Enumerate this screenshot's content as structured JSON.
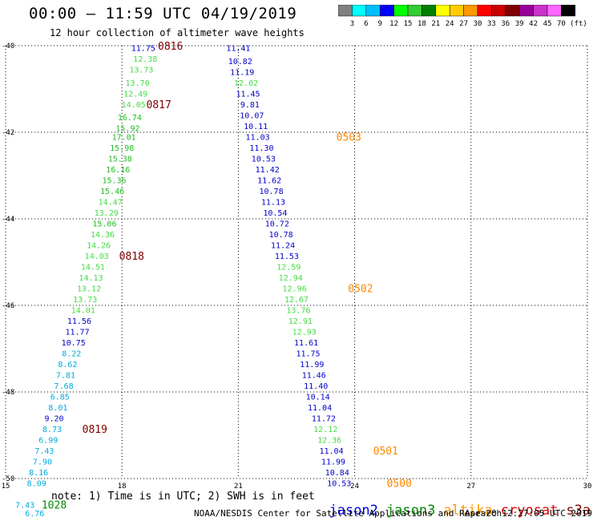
{
  "header": {
    "title": "00:00 – 11:59 UTC 04/19/2019",
    "subtitle": "12 hour collection of altimeter wave heights"
  },
  "colorbar": {
    "labels": [
      "3",
      "6",
      "9",
      "12",
      "15",
      "18",
      "21",
      "24",
      "27",
      "30",
      "33",
      "36",
      "39",
      "42",
      "45",
      "70"
    ],
    "unit": "(ft)",
    "colors": [
      "#808080",
      "#00ffff",
      "#00bfff",
      "#0000ff",
      "#00ff00",
      "#33cc33",
      "#008000",
      "#ffff00",
      "#ffcc00",
      "#ff9900",
      "#ff0000",
      "#cc0000",
      "#800000",
      "#990099",
      "#cc33cc",
      "#ff66ff",
      "#000000"
    ]
  },
  "footer": {
    "note": "note: 1) Time is in UTC; 2) SWH is in feet",
    "credit": "NOAA/NESDIS Center for Satellite Applications and Research",
    "timestamp": "Apr 20 12:27:05 UTC 2019",
    "satellites": [
      {
        "name": "jason2",
        "color": "#0000ee"
      },
      {
        "name": "jason3",
        "color": "#008800"
      },
      {
        "name": "altika",
        "color": "#ff9900"
      },
      {
        "name": "cryosat",
        "color": "#dd0000"
      },
      {
        "name": "s3a",
        "color": "#800000"
      }
    ]
  },
  "chart_data": {
    "type": "scatter",
    "title": "12 hour collection of altimeter wave heights",
    "xlabel": "",
    "ylabel": "",
    "xlim": [
      15,
      30
    ],
    "ylim": [
      -50,
      -40
    ],
    "xticks": [
      15,
      18,
      21,
      24,
      27,
      30
    ],
    "yticks": [
      -40,
      -42,
      -44,
      -46,
      -48,
      -50
    ],
    "grid": true,
    "series": [
      {
        "satellite": "jason2",
        "points": [
          [
            21.0,
            -40.05,
            "11.41"
          ],
          [
            21.05,
            -40.35,
            "10.82"
          ],
          [
            21.1,
            -40.6,
            "11.19"
          ],
          [
            21.2,
            -40.85,
            "12.02"
          ],
          [
            21.25,
            -41.1,
            "11.45"
          ],
          [
            21.3,
            -41.35,
            "9.81"
          ],
          [
            21.35,
            -41.6,
            "10.07"
          ],
          [
            21.45,
            -41.85,
            "10.11"
          ],
          [
            21.5,
            -42.1,
            "11.03"
          ],
          [
            21.6,
            -42.35,
            "11.30"
          ],
          [
            21.65,
            -42.6,
            "10.53"
          ],
          [
            21.75,
            -42.85,
            "11.42"
          ],
          [
            21.8,
            -43.1,
            "11.62"
          ],
          [
            21.85,
            -43.35,
            "10.78"
          ],
          [
            21.9,
            -43.6,
            "11.13"
          ],
          [
            21.95,
            -43.85,
            "10.54"
          ],
          [
            22.0,
            -44.1,
            "10.72"
          ],
          [
            22.1,
            -44.35,
            "10.78"
          ],
          [
            22.15,
            -44.6,
            "11.24"
          ],
          [
            22.25,
            -44.85,
            "11.53"
          ],
          [
            22.3,
            -45.1,
            "12.59"
          ],
          [
            22.35,
            -45.35,
            "12.94"
          ],
          [
            22.45,
            -45.6,
            "12.96"
          ],
          [
            22.5,
            -45.85,
            "12.67"
          ],
          [
            22.55,
            -46.1,
            "13.76"
          ],
          [
            22.6,
            -46.35,
            "12.91"
          ],
          [
            22.7,
            -46.6,
            "12.93"
          ],
          [
            22.75,
            -46.85,
            "11.61"
          ],
          [
            22.8,
            -47.1,
            "11.75"
          ],
          [
            22.9,
            -47.35,
            "11.99"
          ],
          [
            22.95,
            -47.6,
            "11.46"
          ],
          [
            23.0,
            -47.85,
            "11.40"
          ],
          [
            23.05,
            -48.1,
            "10.14"
          ],
          [
            23.1,
            -48.35,
            "11.04"
          ],
          [
            23.2,
            -48.6,
            "11.72"
          ],
          [
            23.25,
            -48.85,
            "12.12"
          ],
          [
            23.35,
            -49.1,
            "12.36"
          ],
          [
            23.4,
            -49.35,
            "11.04"
          ],
          [
            23.45,
            -49.6,
            "11.99"
          ],
          [
            23.55,
            -49.85,
            "10.84"
          ],
          [
            23.6,
            -50.1,
            "10.53"
          ]
        ],
        "orbit_labels": [
          [
            23.85,
            -42.1,
            "0503"
          ],
          [
            24.15,
            -45.6,
            "0502"
          ],
          [
            24.8,
            -49.35,
            "0501"
          ],
          [
            25.15,
            -50.1,
            "0500"
          ]
        ]
      },
      {
        "satellite": "jason3",
        "points": [
          [
            18.55,
            -40.05,
            "11.75"
          ],
          [
            18.6,
            -40.3,
            "12.38"
          ],
          [
            18.5,
            -40.55,
            "13.73"
          ],
          [
            18.4,
            -40.85,
            "13.70"
          ],
          [
            18.35,
            -41.1,
            "12.49"
          ],
          [
            18.3,
            -41.35,
            "14.05"
          ],
          [
            18.2,
            -41.65,
            "16.74"
          ],
          [
            18.15,
            -41.9,
            "15.92"
          ],
          [
            18.05,
            -42.1,
            "17.01"
          ],
          [
            18.0,
            -42.35,
            "15.98"
          ],
          [
            17.95,
            -42.6,
            "15.38"
          ],
          [
            17.9,
            -42.85,
            "16.16"
          ],
          [
            17.8,
            -43.1,
            "15.36"
          ],
          [
            17.75,
            -43.35,
            "15.46"
          ],
          [
            17.7,
            -43.6,
            "14.47"
          ],
          [
            17.6,
            -43.85,
            "13.29"
          ],
          [
            17.55,
            -44.1,
            "15.06"
          ],
          [
            17.5,
            -44.35,
            "14.36"
          ],
          [
            17.4,
            -44.6,
            "14.26"
          ],
          [
            17.35,
            -44.85,
            "14.03"
          ],
          [
            17.25,
            -45.1,
            "14.51"
          ],
          [
            17.2,
            -45.35,
            "14.13"
          ],
          [
            17.15,
            -45.6,
            "13.12"
          ],
          [
            17.05,
            -45.85,
            "13.73"
          ],
          [
            17.0,
            -46.1,
            "14.01"
          ],
          [
            16.9,
            -46.35,
            "11.56"
          ],
          [
            16.85,
            -46.6,
            "11.77"
          ],
          [
            16.75,
            -46.85,
            "10.75"
          ],
          [
            16.7,
            -47.1,
            "8.22"
          ],
          [
            16.6,
            -47.35,
            "8.62"
          ],
          [
            16.55,
            -47.6,
            "7.81"
          ],
          [
            16.5,
            -47.85,
            "7.68"
          ],
          [
            16.4,
            -48.1,
            "6.85"
          ],
          [
            16.35,
            -48.35,
            "8.01"
          ],
          [
            16.25,
            -48.6,
            "9.20"
          ],
          [
            16.2,
            -48.85,
            "8.73"
          ],
          [
            16.1,
            -49.1,
            "6.99"
          ],
          [
            16.0,
            -49.35,
            "7.43"
          ],
          [
            15.95,
            -49.6,
            "7.90"
          ],
          [
            15.85,
            -49.85,
            "8.16"
          ],
          [
            15.8,
            -50.1,
            "8.09"
          ],
          [
            15.5,
            -50.6,
            "7.43"
          ],
          [
            15.75,
            -50.8,
            "6.76"
          ]
        ],
        "orbit_labels": [
          [
            19.25,
            -40.0,
            "0816"
          ],
          [
            18.95,
            -41.35,
            "0817"
          ],
          [
            18.25,
            -44.85,
            "0818"
          ],
          [
            17.3,
            -48.85,
            "0819"
          ],
          [
            16.25,
            -50.6,
            "1028"
          ]
        ]
      }
    ]
  }
}
